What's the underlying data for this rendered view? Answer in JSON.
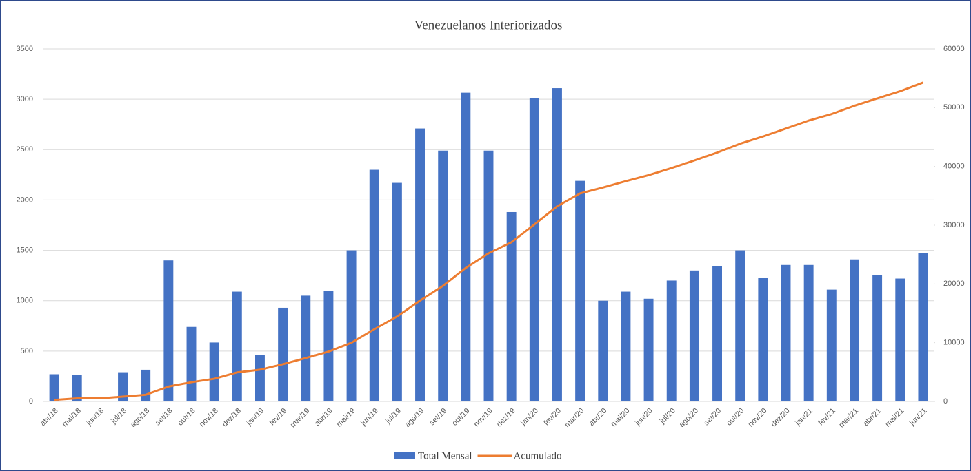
{
  "chart_data": {
    "type": "bar",
    "title": "Venezuelanos Interiorizados",
    "categories": [
      "abr/18",
      "mai/18",
      "jun/18",
      "jul/18",
      "ago/18",
      "set/18",
      "out/18",
      "nov/18",
      "dez/18",
      "jan/19",
      "fev/19",
      "mar/19",
      "abr/19",
      "mai/19",
      "jun/19",
      "jul/19",
      "ago/19",
      "set/19",
      "out/19",
      "nov/19",
      "dez/19",
      "jan/20",
      "fev/20",
      "mar/20",
      "abr/20",
      "mai/20",
      "jun/20",
      "jul/20",
      "ago/20",
      "set/20",
      "out/20",
      "nov/20",
      "dez/20",
      "jan/21",
      "fev/21",
      "mar/21",
      "abr/21",
      "mai/21",
      "jun/21"
    ],
    "series": [
      {
        "name": "Total Mensal",
        "type": "bar",
        "color": "#4472c4",
        "values": [
          270,
          260,
          0,
          290,
          315,
          1400,
          740,
          585,
          1090,
          460,
          930,
          1050,
          1100,
          1500,
          2300,
          2170,
          2710,
          2490,
          3065,
          2490,
          1880,
          3010,
          3110,
          2190,
          1000,
          1090,
          1020,
          1200,
          1300,
          1345,
          1500,
          1230,
          1355,
          1355,
          1110,
          1410,
          1255,
          1220,
          1470
        ]
      },
      {
        "name": "Acumulado",
        "type": "line",
        "axis": "y2",
        "color": "#ed7d31",
        "values": [
          270,
          530,
          530,
          820,
          1135,
          2535,
          3275,
          3860,
          4950,
          5410,
          6340,
          7390,
          8490,
          9990,
          12290,
          14460,
          17170,
          19660,
          22725,
          25215,
          27095,
          30105,
          33215,
          35405,
          36405,
          37495,
          38515,
          39715,
          41015,
          42360,
          43860,
          45090,
          46445,
          47800,
          48910,
          50320,
          51575,
          52795,
          54265
        ]
      }
    ],
    "ylim": [
      0,
      3500
    ],
    "yticks": [
      0,
      500,
      1000,
      1500,
      2000,
      2500,
      3000,
      3500
    ],
    "y2lim": [
      0,
      60000
    ],
    "y2ticks": [
      0,
      10000,
      20000,
      30000,
      40000,
      50000,
      60000
    ],
    "grid": true,
    "legend": "bottom"
  }
}
